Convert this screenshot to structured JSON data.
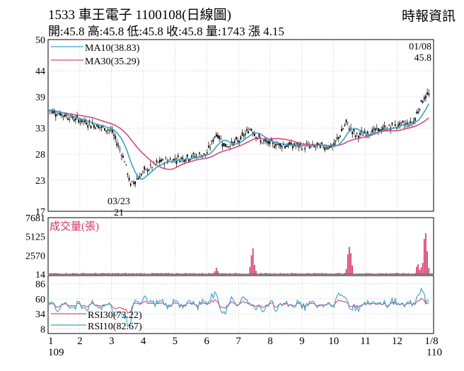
{
  "header": {
    "title": "1533  車王電子 1100108(日線圖)",
    "stats": "開:45.8 高:45.8 低:45.8 收:45.8 量:1743 漲 4.15",
    "source": "時報資訊"
  },
  "colors": {
    "ma10": "#3aa0c8",
    "ma30": "#d84a7a",
    "candle": "#000000",
    "volume": "#d8306a",
    "rsi30": "#d84a7a",
    "rsi10": "#3aa0c8"
  },
  "annotations": {
    "last_date": "01/08",
    "last_close": "45.8",
    "low_date": "03/23",
    "low_value": "21"
  },
  "chart_data": [
    {
      "type": "candlestick",
      "ylim": [
        17,
        50
      ],
      "y_ticks": [
        "50",
        "44",
        "39",
        "33",
        "28",
        "23",
        "17"
      ],
      "legend": [
        {
          "name": "MA10(38.83)",
          "color": "#3aa0c8"
        },
        {
          "name": "MA30(35.29)",
          "color": "#d84a7a"
        }
      ],
      "key_points": [
        {
          "month": 1,
          "close": 36.5
        },
        {
          "month": 2,
          "close": 34.5
        },
        {
          "month": 3,
          "close": 32.5
        },
        {
          "month": 3.4,
          "close": 27.0
        },
        {
          "month": 3.6,
          "close": 22.0
        },
        {
          "month": 4,
          "close": 24.5
        },
        {
          "month": 4.5,
          "close": 26.5
        },
        {
          "month": 5,
          "close": 27.0
        },
        {
          "month": 6,
          "close": 28.0
        },
        {
          "month": 6.3,
          "close": 32.0
        },
        {
          "month": 6.6,
          "close": 29.5
        },
        {
          "month": 7,
          "close": 30.5
        },
        {
          "month": 7.4,
          "close": 33.0
        },
        {
          "month": 7.7,
          "close": 30.5
        },
        {
          "month": 8,
          "close": 30.0
        },
        {
          "month": 9,
          "close": 29.5
        },
        {
          "month": 10,
          "close": 29.5
        },
        {
          "month": 10.4,
          "close": 34.0
        },
        {
          "month": 10.7,
          "close": 31.5
        },
        {
          "month": 11,
          "close": 32.0
        },
        {
          "month": 12,
          "close": 33.5
        },
        {
          "month": 12.5,
          "close": 34.0
        },
        {
          "month": 12.8,
          "close": 38.5
        },
        {
          "month": 13,
          "close": 39.5
        }
      ]
    },
    {
      "type": "bar",
      "label": "成交量(張)",
      "y_ticks": [
        "7681",
        "5125",
        "2570",
        "14"
      ],
      "ylim": [
        14,
        7681
      ],
      "spikes": [
        {
          "month": 6.3,
          "value": 1100
        },
        {
          "month": 7.45,
          "value": 3900
        },
        {
          "month": 10.5,
          "value": 5100
        },
        {
          "month": 12.9,
          "value": 7681
        }
      ]
    },
    {
      "type": "line",
      "ylim": [
        0,
        100
      ],
      "y_ticks": [
        "86",
        "60",
        "34",
        "8"
      ],
      "series": [
        {
          "name": "RSI30(73.22)",
          "color": "#d84a7a"
        },
        {
          "name": "RSI10(82.67)",
          "color": "#3aa0c8"
        }
      ]
    }
  ],
  "x_axis": {
    "ticks": [
      "1",
      "2",
      "3",
      "4",
      "5",
      "6",
      "7",
      "8",
      "9",
      "10",
      "11",
      "12",
      "1/8"
    ],
    "year_start": "109",
    "year_end": "110"
  }
}
